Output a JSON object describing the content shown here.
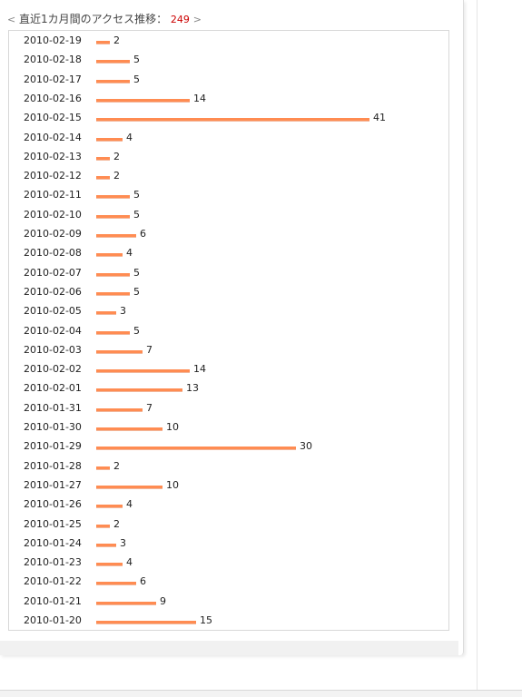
{
  "header": {
    "open_bracket": "<",
    "label": "直近1カ月間のアクセス推移：",
    "total": "249",
    "close_bracket": ">"
  },
  "chart_data": {
    "type": "bar",
    "orientation": "horizontal",
    "title": "直近1カ月間のアクセス推移：249",
    "xlabel": "",
    "ylabel": "",
    "categories": [
      "2010-02-19",
      "2010-02-18",
      "2010-02-17",
      "2010-02-16",
      "2010-02-15",
      "2010-02-14",
      "2010-02-13",
      "2010-02-12",
      "2010-02-11",
      "2010-02-10",
      "2010-02-09",
      "2010-02-08",
      "2010-02-07",
      "2010-02-06",
      "2010-02-05",
      "2010-02-04",
      "2010-02-03",
      "2010-02-02",
      "2010-02-01",
      "2010-01-31",
      "2010-01-30",
      "2010-01-29",
      "2010-01-28",
      "2010-01-27",
      "2010-01-26",
      "2010-01-25",
      "2010-01-24",
      "2010-01-23",
      "2010-01-22",
      "2010-01-21",
      "2010-01-20"
    ],
    "values": [
      2,
      5,
      5,
      14,
      41,
      4,
      2,
      2,
      5,
      5,
      6,
      4,
      5,
      5,
      3,
      5,
      7,
      14,
      13,
      7,
      10,
      30,
      2,
      10,
      4,
      2,
      3,
      4,
      6,
      9,
      15
    ],
    "xlim": [
      0,
      41
    ],
    "grid": false,
    "legend": "none",
    "bar_color": "#ff8c52"
  }
}
